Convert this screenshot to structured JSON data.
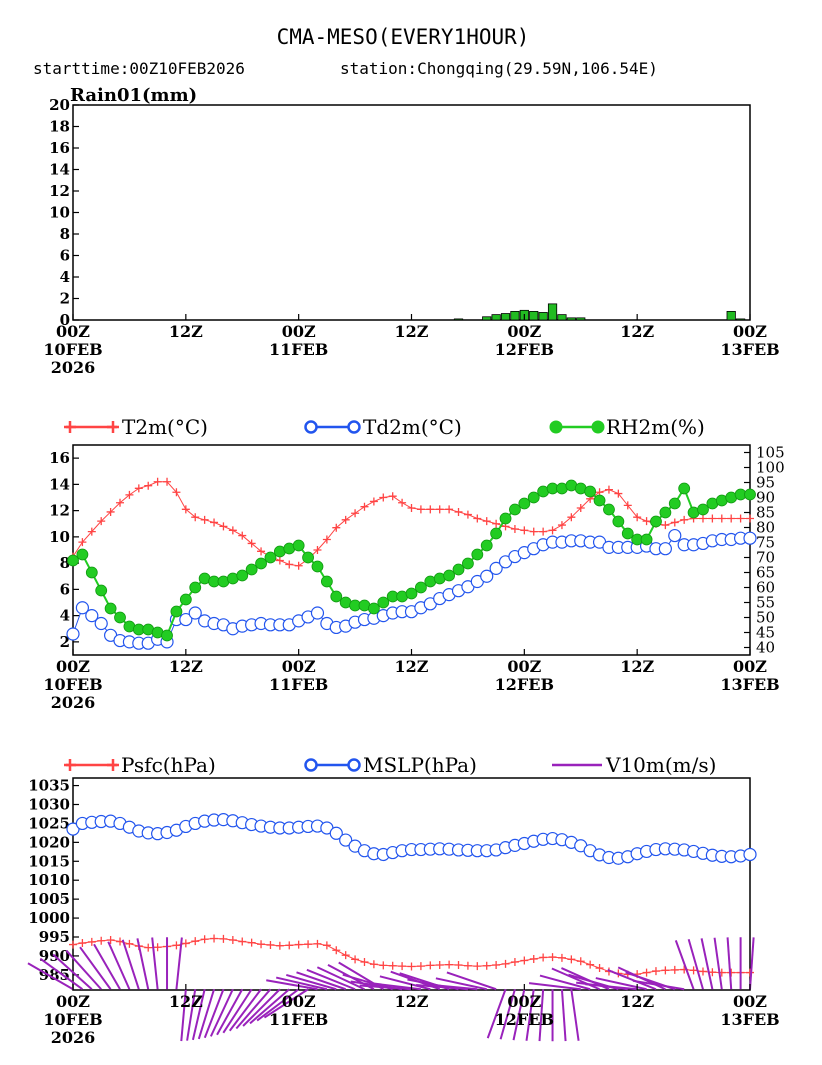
{
  "title": "CMA-MESO(EVERY1HOUR)",
  "subtitle_start": "starttime:00Z10FEB2026",
  "subtitle_station": "station:Chongqing(29.59N,106.54E)",
  "time_axis": {
    "hours_total": 72,
    "ticks": [
      {
        "hour": 0,
        "l1": "00Z",
        "l2": "10FEB",
        "l3": "2026"
      },
      {
        "hour": 12,
        "l1": "12Z",
        "l2": "",
        "l3": ""
      },
      {
        "hour": 24,
        "l1": "00Z",
        "l2": "11FEB",
        "l3": ""
      },
      {
        "hour": 36,
        "l1": "12Z",
        "l2": "",
        "l3": ""
      },
      {
        "hour": 48,
        "l1": "00Z",
        "l2": "12FEB",
        "l3": ""
      },
      {
        "hour": 60,
        "l1": "12Z",
        "l2": "",
        "l3": ""
      },
      {
        "hour": 72,
        "l1": "00Z",
        "l2": "13FEB",
        "l3": ""
      }
    ]
  },
  "colors": {
    "rain_fill": "#22bb22",
    "t2m": "#ff4444",
    "td2m": "#2255ee",
    "rh2m": "#22cc22",
    "psfc": "#ff4444",
    "mslp": "#2255ee",
    "wind": "#9922bb"
  },
  "chart_data": [
    {
      "type": "bar",
      "ylabel": "Rain01(mm)",
      "ylim": [
        0,
        20
      ],
      "yticks": [
        0,
        2,
        4,
        6,
        8,
        10,
        12,
        14,
        16,
        18,
        20
      ],
      "x_hours": [
        41,
        42,
        43,
        44,
        45,
        46,
        47,
        48,
        49,
        50,
        51,
        52,
        53,
        54,
        55,
        56,
        57,
        58,
        59,
        60,
        61,
        62,
        63,
        64,
        65,
        66,
        67,
        68,
        69,
        70,
        71
      ],
      "values": [
        0.1,
        0.0,
        0.0,
        0.3,
        0.5,
        0.6,
        0.8,
        0.9,
        0.8,
        0.7,
        1.5,
        0.5,
        0.2,
        0.2,
        0.0,
        0.0,
        0.0,
        0.0,
        0.0,
        0.0,
        0.0,
        0.0,
        0.0,
        0.0,
        0.0,
        0.0,
        0.0,
        0.0,
        0.0,
        0.8,
        0.1
      ]
    },
    {
      "type": "line",
      "legend": [
        "T2m(°C)",
        "Td2m(°C)",
        "RH2m(%)"
      ],
      "ylim_left": [
        1,
        17
      ],
      "yticks_left": [
        2,
        4,
        6,
        8,
        10,
        12,
        14,
        16
      ],
      "ylim_right": [
        37.5,
        107.5
      ],
      "yticks_right": [
        40,
        45,
        50,
        55,
        60,
        65,
        70,
        75,
        80,
        85,
        90,
        95,
        100,
        105
      ],
      "x_hours": [
        0,
        1,
        2,
        3,
        4,
        5,
        6,
        7,
        8,
        9,
        10,
        11,
        12,
        13,
        14,
        15,
        16,
        17,
        18,
        19,
        20,
        21,
        22,
        23,
        24,
        25,
        26,
        27,
        28,
        29,
        30,
        31,
        32,
        33,
        34,
        35,
        36,
        37,
        38,
        39,
        40,
        41,
        42,
        43,
        44,
        45,
        46,
        47,
        48,
        49,
        50,
        51,
        52,
        53,
        54,
        55,
        56,
        57,
        58,
        59,
        60,
        61,
        62,
        63,
        64,
        65,
        66,
        67,
        68,
        69,
        70,
        71,
        72
      ],
      "series": [
        {
          "name": "T2m(°C)",
          "axis": "left",
          "marker": "plus",
          "values": [
            8.5,
            9.6,
            10.4,
            11.2,
            11.9,
            12.6,
            13.2,
            13.7,
            13.9,
            14.2,
            14.2,
            13.4,
            12.1,
            11.5,
            11.3,
            11.1,
            10.8,
            10.5,
            10.1,
            9.5,
            8.9,
            8.5,
            8.2,
            7.9,
            7.8,
            8.3,
            9.0,
            9.8,
            10.7,
            11.3,
            11.8,
            12.3,
            12.7,
            13.0,
            13.1,
            12.6,
            12.2,
            12.1,
            12.1,
            12.1,
            12.1,
            11.9,
            11.7,
            11.4,
            11.2,
            11.0,
            10.8,
            10.6,
            10.5,
            10.4,
            10.4,
            10.5,
            10.9,
            11.5,
            12.2,
            12.9,
            13.4,
            13.6,
            13.3,
            12.4,
            11.5,
            11.2,
            11.0,
            10.9,
            11.1,
            11.3,
            11.4,
            11.4,
            11.4,
            11.4,
            11.4,
            11.4,
            11.4
          ]
        },
        {
          "name": "Td2m(°C)",
          "axis": "left",
          "marker": "circle",
          "values": [
            2.6,
            4.6,
            4.0,
            3.4,
            2.5,
            2.1,
            2.0,
            1.9,
            1.9,
            2.2,
            2.0,
            3.7,
            3.7,
            4.2,
            3.6,
            3.4,
            3.3,
            3.0,
            3.2,
            3.3,
            3.4,
            3.3,
            3.3,
            3.3,
            3.6,
            3.9,
            4.2,
            3.4,
            3.1,
            3.2,
            3.5,
            3.7,
            3.8,
            4.0,
            4.2,
            4.3,
            4.3,
            4.6,
            4.9,
            5.3,
            5.6,
            5.9,
            6.2,
            6.6,
            7.0,
            7.6,
            8.1,
            8.5,
            8.8,
            9.1,
            9.4,
            9.6,
            9.6,
            9.7,
            9.7,
            9.6,
            9.6,
            9.2,
            9.2,
            9.2,
            9.2,
            9.3,
            9.1,
            9.1,
            10.1,
            9.4,
            9.4,
            9.5,
            9.7,
            9.8,
            9.8,
            9.9,
            9.9
          ]
        },
        {
          "name": "RH2m(%)",
          "axis": "right",
          "marker": "dot",
          "values": [
            69,
            71,
            65,
            59,
            53,
            50,
            47,
            46,
            46,
            45,
            44,
            52,
            56,
            60,
            63,
            62,
            62,
            63,
            64,
            66,
            68,
            70,
            72,
            73,
            74,
            70,
            67,
            62,
            57,
            55,
            54,
            54,
            53,
            55,
            57,
            57,
            58,
            60,
            62,
            63,
            64,
            66,
            68,
            71,
            74,
            78,
            83,
            86,
            88,
            90,
            92,
            93,
            93,
            94,
            93,
            92,
            89,
            86,
            82,
            78,
            76,
            76,
            82,
            85,
            88,
            93,
            85,
            86,
            88,
            89,
            90,
            91,
            91
          ]
        }
      ]
    },
    {
      "type": "line",
      "legend": [
        "Psfc(hPa)",
        "MSLP(hPa)",
        "V10m(m/s)"
      ],
      "ylim": [
        981,
        1037
      ],
      "yticks": [
        985,
        990,
        995,
        1000,
        1005,
        1010,
        1015,
        1020,
        1025,
        1030,
        1035
      ],
      "x_hours": [
        0,
        1,
        2,
        3,
        4,
        5,
        6,
        7,
        8,
        9,
        10,
        11,
        12,
        13,
        14,
        15,
        16,
        17,
        18,
        19,
        20,
        21,
        22,
        23,
        24,
        25,
        26,
        27,
        28,
        29,
        30,
        31,
        32,
        33,
        34,
        35,
        36,
        37,
        38,
        39,
        40,
        41,
        42,
        43,
        44,
        45,
        46,
        47,
        48,
        49,
        50,
        51,
        52,
        53,
        54,
        55,
        56,
        57,
        58,
        59,
        60,
        61,
        62,
        63,
        64,
        65,
        66,
        67,
        68,
        69,
        70,
        71,
        72
      ],
      "series": [
        {
          "name": "Psfc(hPa)",
          "marker": "plus",
          "values": [
            993.0,
            993.4,
            993.7,
            994.0,
            994.2,
            993.8,
            993.2,
            992.6,
            992.2,
            992.3,
            992.5,
            992.8,
            993.3,
            993.9,
            994.4,
            994.6,
            994.5,
            994.2,
            993.8,
            993.5,
            993.1,
            992.9,
            992.7,
            992.8,
            993.0,
            993.1,
            993.2,
            992.8,
            991.5,
            990.2,
            989.1,
            988.4,
            987.8,
            987.5,
            987.4,
            987.3,
            987.2,
            987.3,
            987.5,
            987.6,
            987.7,
            987.6,
            987.4,
            987.3,
            987.4,
            987.6,
            987.9,
            988.4,
            988.8,
            989.2,
            989.6,
            989.7,
            989.5,
            989.1,
            988.6,
            987.7,
            986.8,
            985.9,
            985.4,
            985.1,
            985.2,
            985.6,
            986.0,
            986.2,
            986.3,
            986.4,
            986.2,
            985.9,
            985.7,
            985.6,
            985.6,
            985.6,
            985.6
          ]
        },
        {
          "name": "MSLP(hPa)",
          "marker": "circle",
          "values": [
            1023.5,
            1025.0,
            1025.3,
            1025.5,
            1025.6,
            1025.0,
            1024.0,
            1023.0,
            1022.5,
            1022.3,
            1022.6,
            1023.2,
            1024.2,
            1025.0,
            1025.6,
            1025.9,
            1026.0,
            1025.7,
            1025.2,
            1024.7,
            1024.3,
            1024.0,
            1023.8,
            1023.8,
            1024.0,
            1024.2,
            1024.3,
            1023.8,
            1022.4,
            1020.6,
            1019.0,
            1017.8,
            1017.0,
            1016.8,
            1017.3,
            1017.8,
            1018.1,
            1018.1,
            1018.2,
            1018.3,
            1018.2,
            1018.0,
            1017.9,
            1017.8,
            1017.8,
            1018.0,
            1018.6,
            1019.2,
            1019.7,
            1020.3,
            1020.8,
            1021.0,
            1020.7,
            1020.0,
            1019.1,
            1017.8,
            1016.7,
            1016.0,
            1015.8,
            1016.2,
            1017.0,
            1017.6,
            1018.1,
            1018.3,
            1018.2,
            1018.0,
            1017.6,
            1017.1,
            1016.6,
            1016.3,
            1016.2,
            1016.4,
            1016.8
          ]
        },
        {
          "name": "V10m(m/s)",
          "marker": "barb"
        }
      ]
    }
  ]
}
